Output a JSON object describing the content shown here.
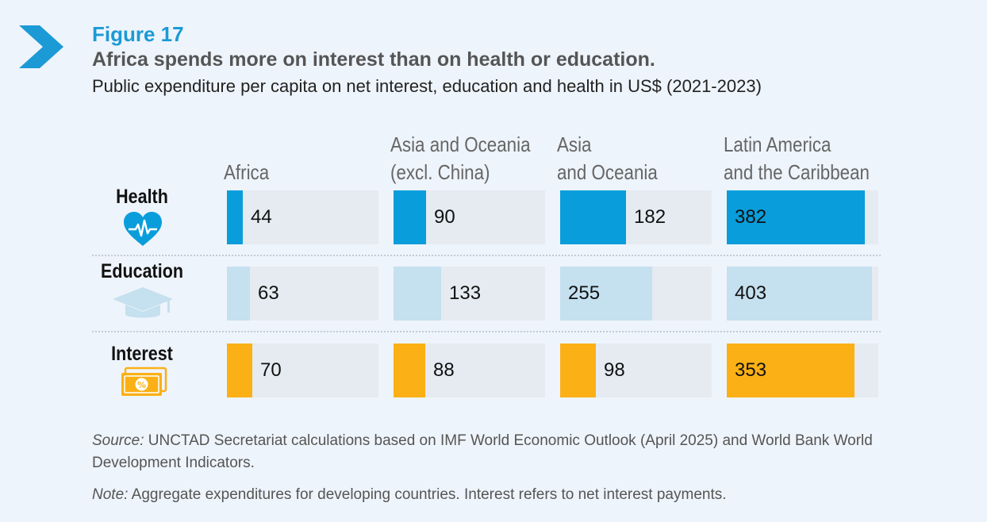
{
  "figure": {
    "label": "Figure 17",
    "title": "Africa spends more on interest than on health or education.",
    "subtitle": "Public expenditure per capita on net interest, education and health in US$ (2021-2023)"
  },
  "colors": {
    "health": "#0a9ddb",
    "education": "#c5e0ef",
    "interest": "#fbb016",
    "track": "#e5ebf1",
    "accent": "#1b9ad6"
  },
  "icons": {
    "figure": "chevron-right-icon",
    "health": "heart-pulse-icon",
    "education": "graduation-cap-icon",
    "interest": "money-percent-icon"
  },
  "chart_data": {
    "type": "bar",
    "orientation": "horizontal",
    "unit": "US$",
    "max_value": 420,
    "categories": [
      [
        "Africa"
      ],
      [
        "Asia and Oceania",
        "(excl. China)"
      ],
      [
        "Asia",
        "and Oceania"
      ],
      [
        "Latin America",
        "and the Caribbean"
      ]
    ],
    "series": [
      {
        "name": "Health",
        "values": [
          44,
          90,
          182,
          382
        ]
      },
      {
        "name": "Education",
        "values": [
          63,
          133,
          255,
          403
        ]
      },
      {
        "name": "Interest",
        "values": [
          70,
          88,
          98,
          353
        ]
      }
    ]
  },
  "footer": {
    "source_label": "Source:",
    "source_text": " UNCTAD Secretariat calculations based on IMF World Economic Outlook (April 2025) and World Bank World Development Indicators.",
    "note_label": "Note:",
    "note_text": " Aggregate expenditures for developing countries. Interest refers to net interest payments."
  }
}
